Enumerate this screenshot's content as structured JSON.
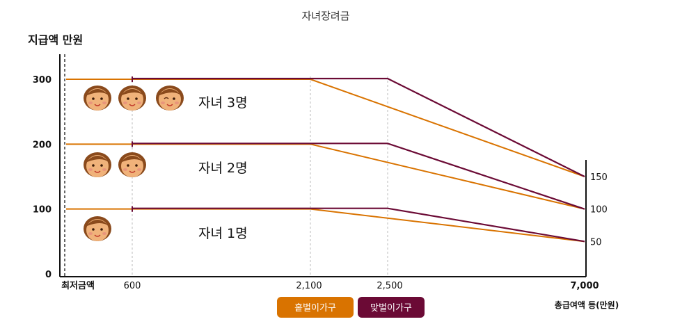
{
  "chart_data": {
    "type": "line",
    "title": "자녀장려금",
    "ylabel": "지급액 만원",
    "xlabel": "총급여액 등(만원)",
    "y_ticks_left": [
      "0",
      "100",
      "200",
      "300"
    ],
    "y_ticks_right": [
      "50",
      "100",
      "150"
    ],
    "x_ticks": [
      "최저금액",
      "600",
      "2,100",
      "2,500",
      "7,000"
    ],
    "groups": [
      {
        "label": "자녀 3명",
        "children": 3,
        "max": 300,
        "end": 150
      },
      {
        "label": "자녀 2명",
        "children": 2,
        "max": 200,
        "end": 100
      },
      {
        "label": "자녀 1명",
        "children": 1,
        "max": 100,
        "end": 50
      }
    ],
    "series": [
      {
        "name": "홑벌이가구",
        "color": "#d97300",
        "plateau_end_x": 2100
      },
      {
        "name": "맞벌이가구",
        "color": "#6b0a35",
        "plateau_end_x": 2500
      }
    ],
    "x_start": 600,
    "x_end": 7000,
    "grid": "vertical dashed at 600, 2100, 2500",
    "face_color": "#f0b27a",
    "hair_color": "#8a4a1c"
  }
}
